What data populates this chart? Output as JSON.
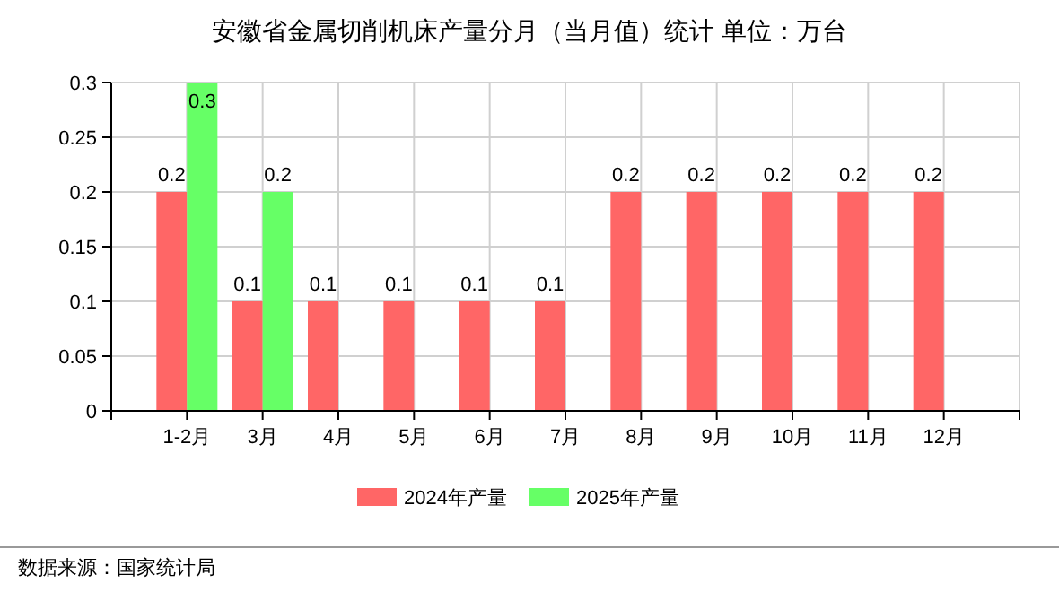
{
  "chart_data": {
    "type": "bar",
    "title": "安徽省金属切削机床产量分月（当月值）统计  单位：万台",
    "categories": [
      "1-2月",
      "3月",
      "4月",
      "5月",
      "6月",
      "7月",
      "8月",
      "9月",
      "10月",
      "11月",
      "12月"
    ],
    "series": [
      {
        "name": "2024年产量",
        "color": "#ff6666",
        "values": [
          0.2,
          0.1,
          0.1,
          0.1,
          0.1,
          0.1,
          0.2,
          0.2,
          0.2,
          0.2,
          0.2
        ]
      },
      {
        "name": "2025年产量",
        "color": "#66ff66",
        "values": [
          0.3,
          0.2,
          null,
          null,
          null,
          null,
          null,
          null,
          null,
          null,
          null
        ]
      }
    ],
    "ylim": [
      0,
      0.3
    ],
    "yticks": [
      0,
      0.05,
      0.1,
      0.15,
      0.2,
      0.25,
      0.3
    ],
    "grid": true,
    "legend": "bottom",
    "data_labels": true,
    "annotations": [
      "数据来源：国家统计局"
    ]
  }
}
